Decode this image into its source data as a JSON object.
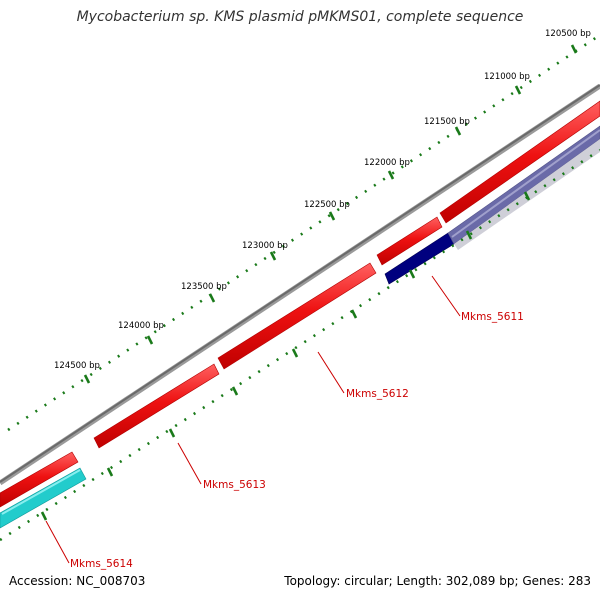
{
  "title": "Mycobacterium sp. KMS plasmid pMKMS01, complete sequence",
  "accession": "Accession: NC_008703",
  "summary": "Topology: circular; Length: 302,089 bp; Genes: 283",
  "colors": {
    "backbone": "#7a7a7a",
    "cds_forward": "#ee1111",
    "cds_reverse": "#00007f",
    "cds_reverse_cyan": "#22cccc",
    "faded_reverse": "#6a6aa8",
    "ticks": "#1a7a1a",
    "gene_label": "#cc0000"
  },
  "scale_labels": [
    "120500 bp",
    "121000 bp",
    "121500 bp",
    "122000 bp",
    "122500 bp",
    "123000 bp",
    "123500 bp",
    "124000 bp",
    "124500 bp"
  ],
  "gene_labels": [
    "Mkms_5611",
    "Mkms_5612",
    "Mkms_5613",
    "Mkms_5614"
  ]
}
